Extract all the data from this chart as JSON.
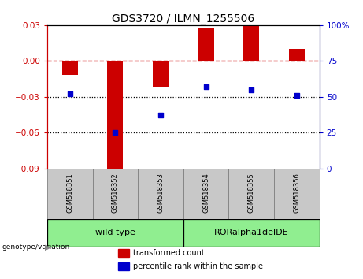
{
  "title": "GDS3720 / ILMN_1255506",
  "samples": [
    "GSM518351",
    "GSM518352",
    "GSM518353",
    "GSM518354",
    "GSM518355",
    "GSM518356"
  ],
  "red_values": [
    -0.012,
    -0.09,
    -0.022,
    0.027,
    0.029,
    0.01
  ],
  "blue_values": [
    52,
    25,
    37,
    57,
    55,
    51
  ],
  "ylim_left": [
    -0.09,
    0.03
  ],
  "ylim_right": [
    0,
    100
  ],
  "yticks_left": [
    -0.09,
    -0.06,
    -0.03,
    0,
    0.03
  ],
  "yticks_right": [
    0,
    25,
    50,
    75,
    100
  ],
  "group_label": "genotype/variation",
  "legend_red": "transformed count",
  "legend_blue": "percentile rank within the sample",
  "bar_color": "#cc0000",
  "dot_color": "#0000cc",
  "hline_color": "#cc0000",
  "dotted_line_color": "#000000",
  "bg_color": "#ffffff",
  "plot_bg_color": "#ffffff",
  "tick_bg_color": "#c8c8c8",
  "group_color": "#90ee90",
  "title_fontsize": 10,
  "axis_fontsize": 7.5,
  "label_fontsize": 6.5,
  "group_fontsize": 8,
  "legend_fontsize": 7
}
